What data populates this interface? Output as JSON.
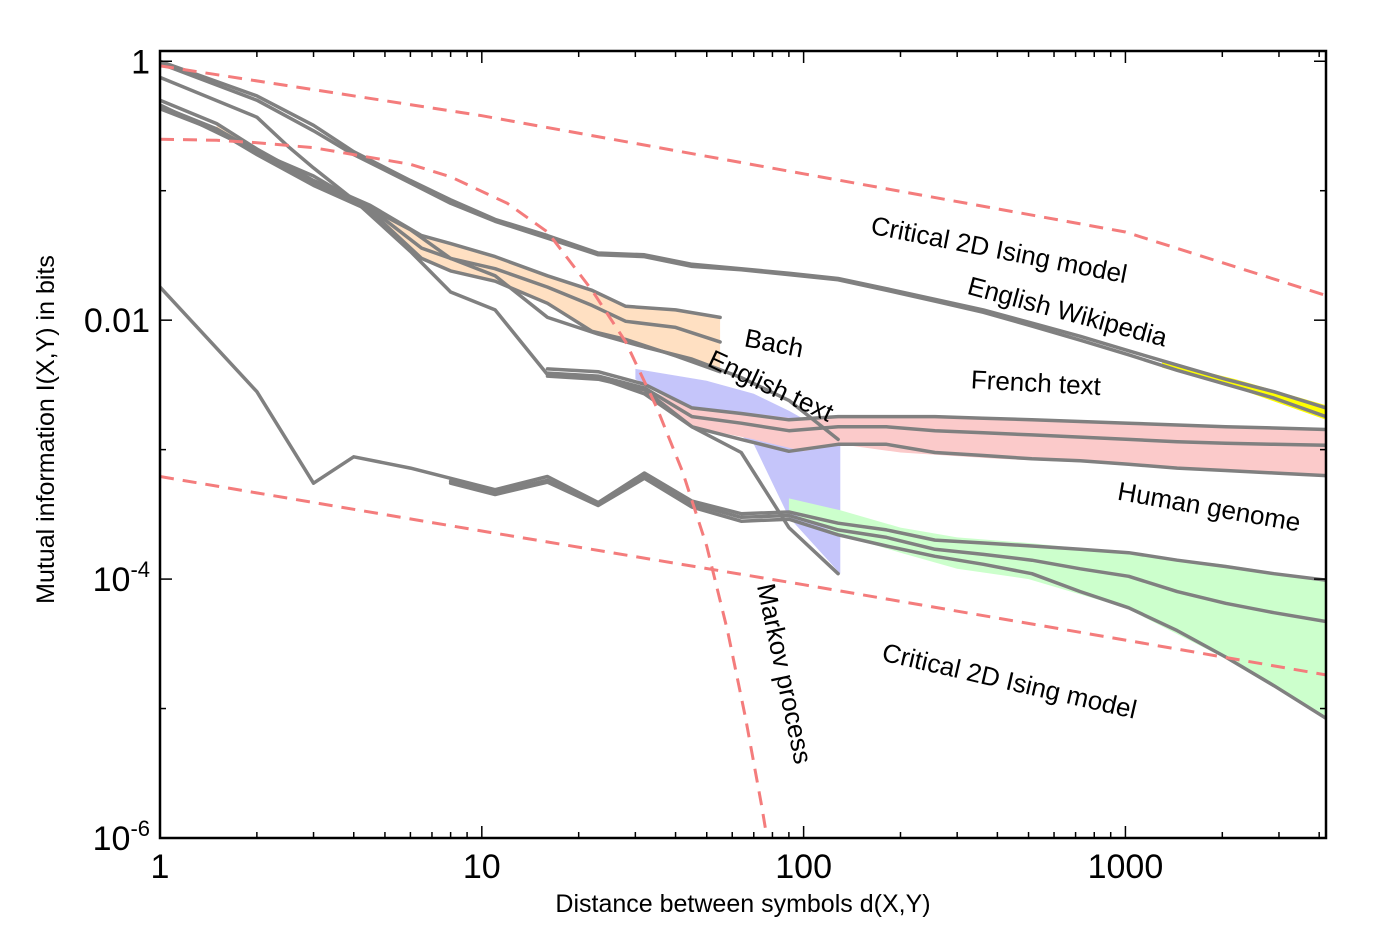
{
  "chart_data": {
    "type": "line",
    "xlabel": "Distance between symbols d(X,Y)",
    "ylabel": "Mutual information I(X,Y) in bits",
    "xscale": "log",
    "yscale": "log",
    "xlim": [
      1,
      4200
    ],
    "ylim": [
      1e-06,
      1.2
    ],
    "xticks": [
      {
        "value": 1,
        "label": "1"
      },
      {
        "value": 10,
        "label": "10"
      },
      {
        "value": 100,
        "label": "100"
      },
      {
        "value": 1000,
        "label": "1000"
      }
    ],
    "yticks": [
      {
        "value": 1,
        "label": "1",
        "exp": ""
      },
      {
        "value": 0.01,
        "label": "0.01",
        "exp": ""
      },
      {
        "value": 0.0001,
        "label": "10",
        "exp": "-4"
      },
      {
        "value": 1e-06,
        "label": "10",
        "exp": "-6"
      }
    ],
    "grid": false,
    "legend": "none",
    "colors": {
      "dashed": "#f47c7c",
      "line": "#808080"
    },
    "annotations": [
      {
        "text": "Critical 2D Ising model",
        "x": 400,
        "y": 0.03,
        "angle": 11
      },
      {
        "text": "English Wikipedia",
        "x": 650,
        "y": 0.01,
        "angle": 15
      },
      {
        "text": "Bach",
        "x": 80,
        "y": 0.0057,
        "angle": 11
      },
      {
        "text": "English text",
        "x": 77,
        "y": 0.0027,
        "angle": 25
      },
      {
        "text": "French text",
        "x": 525,
        "y": 0.0028,
        "angle": 3
      },
      {
        "text": "Human genome",
        "x": 1800,
        "y": 0.00031,
        "angle": 10
      },
      {
        "text": "Critical 2D Ising model",
        "x": 430,
        "y": 1.4e-05,
        "angle": 13
      },
      {
        "text": "Markov process",
        "x": 82,
        "y": 1.8e-05,
        "angle": 78
      }
    ],
    "reference_curves": [
      {
        "name": "Critical 2D Ising model (upper)",
        "x": [
          1,
          10,
          100,
          1000,
          4200
        ],
        "y": [
          0.92,
          0.38,
          0.135,
          0.048,
          0.0155
        ]
      },
      {
        "name": "Critical 2D Ising model (lower)",
        "x": [
          1,
          10,
          100,
          1000,
          4200
        ],
        "y": [
          0.00062,
          0.000235,
          9.05e-05,
          3.38e-05,
          1.82e-05
        ]
      },
      {
        "name": "Markov process",
        "x": [
          1,
          1.5,
          2,
          3,
          4,
          6,
          8,
          12,
          16,
          22,
          28,
          35,
          42,
          50,
          58,
          66,
          74,
          76
        ],
        "y": [
          0.25,
          0.245,
          0.235,
          0.215,
          0.19,
          0.16,
          0.128,
          0.08,
          0.048,
          0.017,
          0.0068,
          0.0021,
          0.00068,
          0.00018,
          4e-05,
          8.5e-06,
          1.8e-06,
          1.2e-06
        ]
      }
    ],
    "bands": [
      {
        "name": "Bach",
        "color": "#ffe0c2",
        "x": [
          1.5,
          2,
          3,
          4.5,
          6.5,
          8,
          11,
          16,
          22,
          28,
          40,
          55
        ],
        "upper": [
          0.32,
          0.21,
          0.12,
          0.076,
          0.044,
          0.038,
          0.03,
          0.022,
          0.017,
          0.0128,
          0.012,
          0.0105
        ],
        "lower": [
          0.3,
          0.19,
          0.11,
          0.07,
          0.03,
          0.024,
          0.02,
          0.0135,
          0.0082,
          0.0071,
          0.0053,
          0.004
        ]
      },
      {
        "name": "English text",
        "color": "#c5c5fa",
        "x": [
          30,
          50,
          70,
          90,
          130
        ],
        "upper": [
          0.0042,
          0.0034,
          0.0027,
          0.002,
          0.0012
        ],
        "lower": [
          0.0035,
          0.0019,
          0.0011,
          0.0003,
          0.00011
        ]
      },
      {
        "name": "French text",
        "color": "#fbcaca",
        "x": [
          30,
          45,
          70,
          100,
          130,
          200,
          400,
          1000,
          4200
        ],
        "upper": [
          0.0032,
          0.0021,
          0.0019,
          0.0017,
          0.0018,
          0.0018,
          0.0017,
          0.0016,
          0.00143
        ],
        "lower": [
          0.0029,
          0.0015,
          0.0012,
          0.00097,
          0.0011,
          0.00095,
          0.00085,
          0.00077,
          0.00063
        ]
      },
      {
        "name": "Human genome",
        "color": "#ccffcc",
        "x": [
          90,
          130,
          200,
          300,
          500,
          1000,
          2000,
          4200
        ],
        "upper": [
          0.00042,
          0.00034,
          0.00025,
          0.00021,
          0.00019,
          0.00016,
          0.00013,
          9.8e-05
        ],
        "lower": [
          0.00033,
          0.00022,
          0.00016,
          0.00012,
          0.0001,
          6e-05,
          2.5e-05,
          8.4e-06
        ]
      },
      {
        "name": "English Wikipedia",
        "color": "#ffff00",
        "x": [
          1300,
          2200,
          4200
        ],
        "upper": [
          0.0048,
          0.0035,
          0.0022
        ],
        "lower": [
          0.0043,
          0.003,
          0.0017
        ]
      }
    ],
    "series": [
      {
        "x": [
          1,
          2,
          3,
          4,
          6,
          8,
          11,
          16,
          23,
          32,
          45,
          64,
          90,
          128,
          181,
          256,
          362,
          512,
          724,
          1024,
          1448,
          2048,
          2896,
          4200
        ],
        "y": [
          1.0,
          0.54,
          0.32,
          0.2,
          0.12,
          0.085,
          0.06,
          0.045,
          0.033,
          0.032,
          0.027,
          0.025,
          0.023,
          0.021,
          0.0175,
          0.0145,
          0.012,
          0.0095,
          0.0075,
          0.0058,
          0.0045,
          0.0035,
          0.0028,
          0.0021
        ]
      },
      {
        "x": [
          1,
          2,
          3,
          4,
          6,
          8,
          11,
          16,
          23,
          32,
          45,
          64,
          90,
          128,
          181,
          256,
          362,
          512,
          724,
          1024,
          1448,
          2048,
          2896,
          4200
        ],
        "y": [
          0.96,
          0.5,
          0.29,
          0.19,
          0.115,
          0.08,
          0.058,
          0.043,
          0.032,
          0.031,
          0.026,
          0.0245,
          0.0225,
          0.0205,
          0.017,
          0.014,
          0.0115,
          0.009,
          0.007,
          0.0054,
          0.0041,
          0.0032,
          0.0025,
          0.0018
        ]
      },
      {
        "x": [
          1,
          2,
          2.5,
          3,
          4,
          6,
          8,
          11,
          16,
          23,
          32,
          45,
          64,
          90,
          128
        ],
        "y": [
          0.75,
          0.37,
          0.22,
          0.15,
          0.085,
          0.05,
          0.03,
          0.022,
          0.0105,
          0.0078,
          0.0062,
          0.005,
          0.0036,
          0.0024,
          0.0012
        ]
      },
      {
        "x": [
          1,
          1.5,
          2,
          3,
          4.5,
          6.5,
          8,
          11,
          16,
          22,
          28,
          40,
          55
        ],
        "y": [
          0.5,
          0.33,
          0.21,
          0.12,
          0.077,
          0.045,
          0.039,
          0.031,
          0.022,
          0.017,
          0.0128,
          0.012,
          0.0105
        ]
      },
      {
        "x": [
          1,
          1.5,
          2,
          3,
          4.5,
          6.5,
          8,
          11,
          16,
          22,
          28,
          40,
          55
        ],
        "y": [
          0.45,
          0.3,
          0.2,
          0.115,
          0.073,
          0.036,
          0.03,
          0.025,
          0.018,
          0.013,
          0.0098,
          0.0088,
          0.0068
        ]
      },
      {
        "x": [
          1,
          1.5,
          2,
          3,
          4.5,
          6.5,
          8,
          11,
          16,
          22,
          28,
          40,
          55
        ],
        "y": [
          0.43,
          0.29,
          0.19,
          0.11,
          0.07,
          0.03,
          0.024,
          0.02,
          0.0135,
          0.0082,
          0.0071,
          0.0053,
          0.004
        ]
      },
      {
        "x": [
          1,
          2,
          3,
          4,
          6,
          8,
          11,
          16,
          23,
          32,
          45,
          64,
          90,
          128
        ],
        "y": [
          0.46,
          0.2,
          0.13,
          0.085,
          0.034,
          0.0165,
          0.012,
          0.0038,
          0.0036,
          0.0027,
          0.0015,
          0.00095,
          0.00025,
          0.00011
        ]
      },
      {
        "x": [
          16,
          23,
          32,
          45,
          64,
          90,
          128,
          181,
          256,
          362,
          512,
          724,
          1024,
          1448,
          2048,
          2896,
          4200
        ],
        "y": [
          0.0042,
          0.004,
          0.0032,
          0.0021,
          0.0019,
          0.0017,
          0.0018,
          0.0018,
          0.0018,
          0.00175,
          0.0017,
          0.00165,
          0.0016,
          0.00155,
          0.0015,
          0.00147,
          0.00143
        ]
      },
      {
        "x": [
          16,
          23,
          32,
          45,
          64,
          90,
          128,
          181,
          256,
          362,
          512,
          724,
          1024,
          1448,
          2048,
          2896,
          4200
        ],
        "y": [
          0.0039,
          0.0037,
          0.003,
          0.0018,
          0.0016,
          0.0014,
          0.0015,
          0.0015,
          0.0014,
          0.00135,
          0.0013,
          0.00125,
          0.0012,
          0.00115,
          0.00112,
          0.0011,
          0.00108
        ]
      },
      {
        "x": [
          16,
          23,
          32,
          45,
          64,
          90,
          128,
          181,
          256,
          362,
          512,
          724,
          1024,
          1448,
          2048,
          2896,
          4200
        ],
        "y": [
          0.0037,
          0.0035,
          0.0029,
          0.0015,
          0.0012,
          0.00097,
          0.0011,
          0.0011,
          0.00095,
          0.0009,
          0.00085,
          0.00082,
          0.00077,
          0.00072,
          0.00069,
          0.00066,
          0.00063
        ]
      },
      {
        "x": [
          1,
          2,
          3,
          4,
          6,
          8,
          11,
          16,
          23,
          32,
          45,
          64,
          90,
          128,
          181,
          256,
          362,
          512,
          724,
          1024,
          1448,
          2048,
          2896,
          4200
        ],
        "y": [
          0.018,
          0.0028,
          0.00055,
          0.00088,
          0.00072,
          0.0006,
          0.00049,
          0.00062,
          0.00039,
          0.00066,
          0.0004,
          0.00032,
          0.00033,
          0.00027,
          0.00024,
          0.0002,
          0.00019,
          0.00018,
          0.00017,
          0.00016,
          0.00014,
          0.000125,
          0.00011,
          9.8e-05
        ]
      },
      {
        "x": [
          8,
          11,
          16,
          23,
          32,
          45,
          64,
          90,
          128,
          181,
          256,
          362,
          512,
          724,
          1024,
          1448,
          2048,
          2896,
          4200
        ],
        "y": [
          0.00057,
          0.00047,
          0.00058,
          0.00038,
          0.00062,
          0.00038,
          0.0003,
          0.00031,
          0.00024,
          0.00021,
          0.00017,
          0.000155,
          0.00014,
          0.00012,
          0.000105,
          8e-05,
          6.5e-05,
          5.5e-05,
          4.7e-05
        ]
      },
      {
        "x": [
          8,
          11,
          16,
          23,
          32,
          45,
          64,
          90,
          128,
          181,
          256,
          362,
          512,
          724,
          1024,
          1448,
          2048,
          2896,
          4200
        ],
        "y": [
          0.00055,
          0.00045,
          0.00056,
          0.00037,
          0.0006,
          0.00036,
          0.00028,
          0.00029,
          0.00022,
          0.00018,
          0.00015,
          0.00013,
          0.00011,
          8e-05,
          6e-05,
          4e-05,
          2.5e-05,
          1.5e-05,
          8.4e-06
        ]
      }
    ]
  }
}
